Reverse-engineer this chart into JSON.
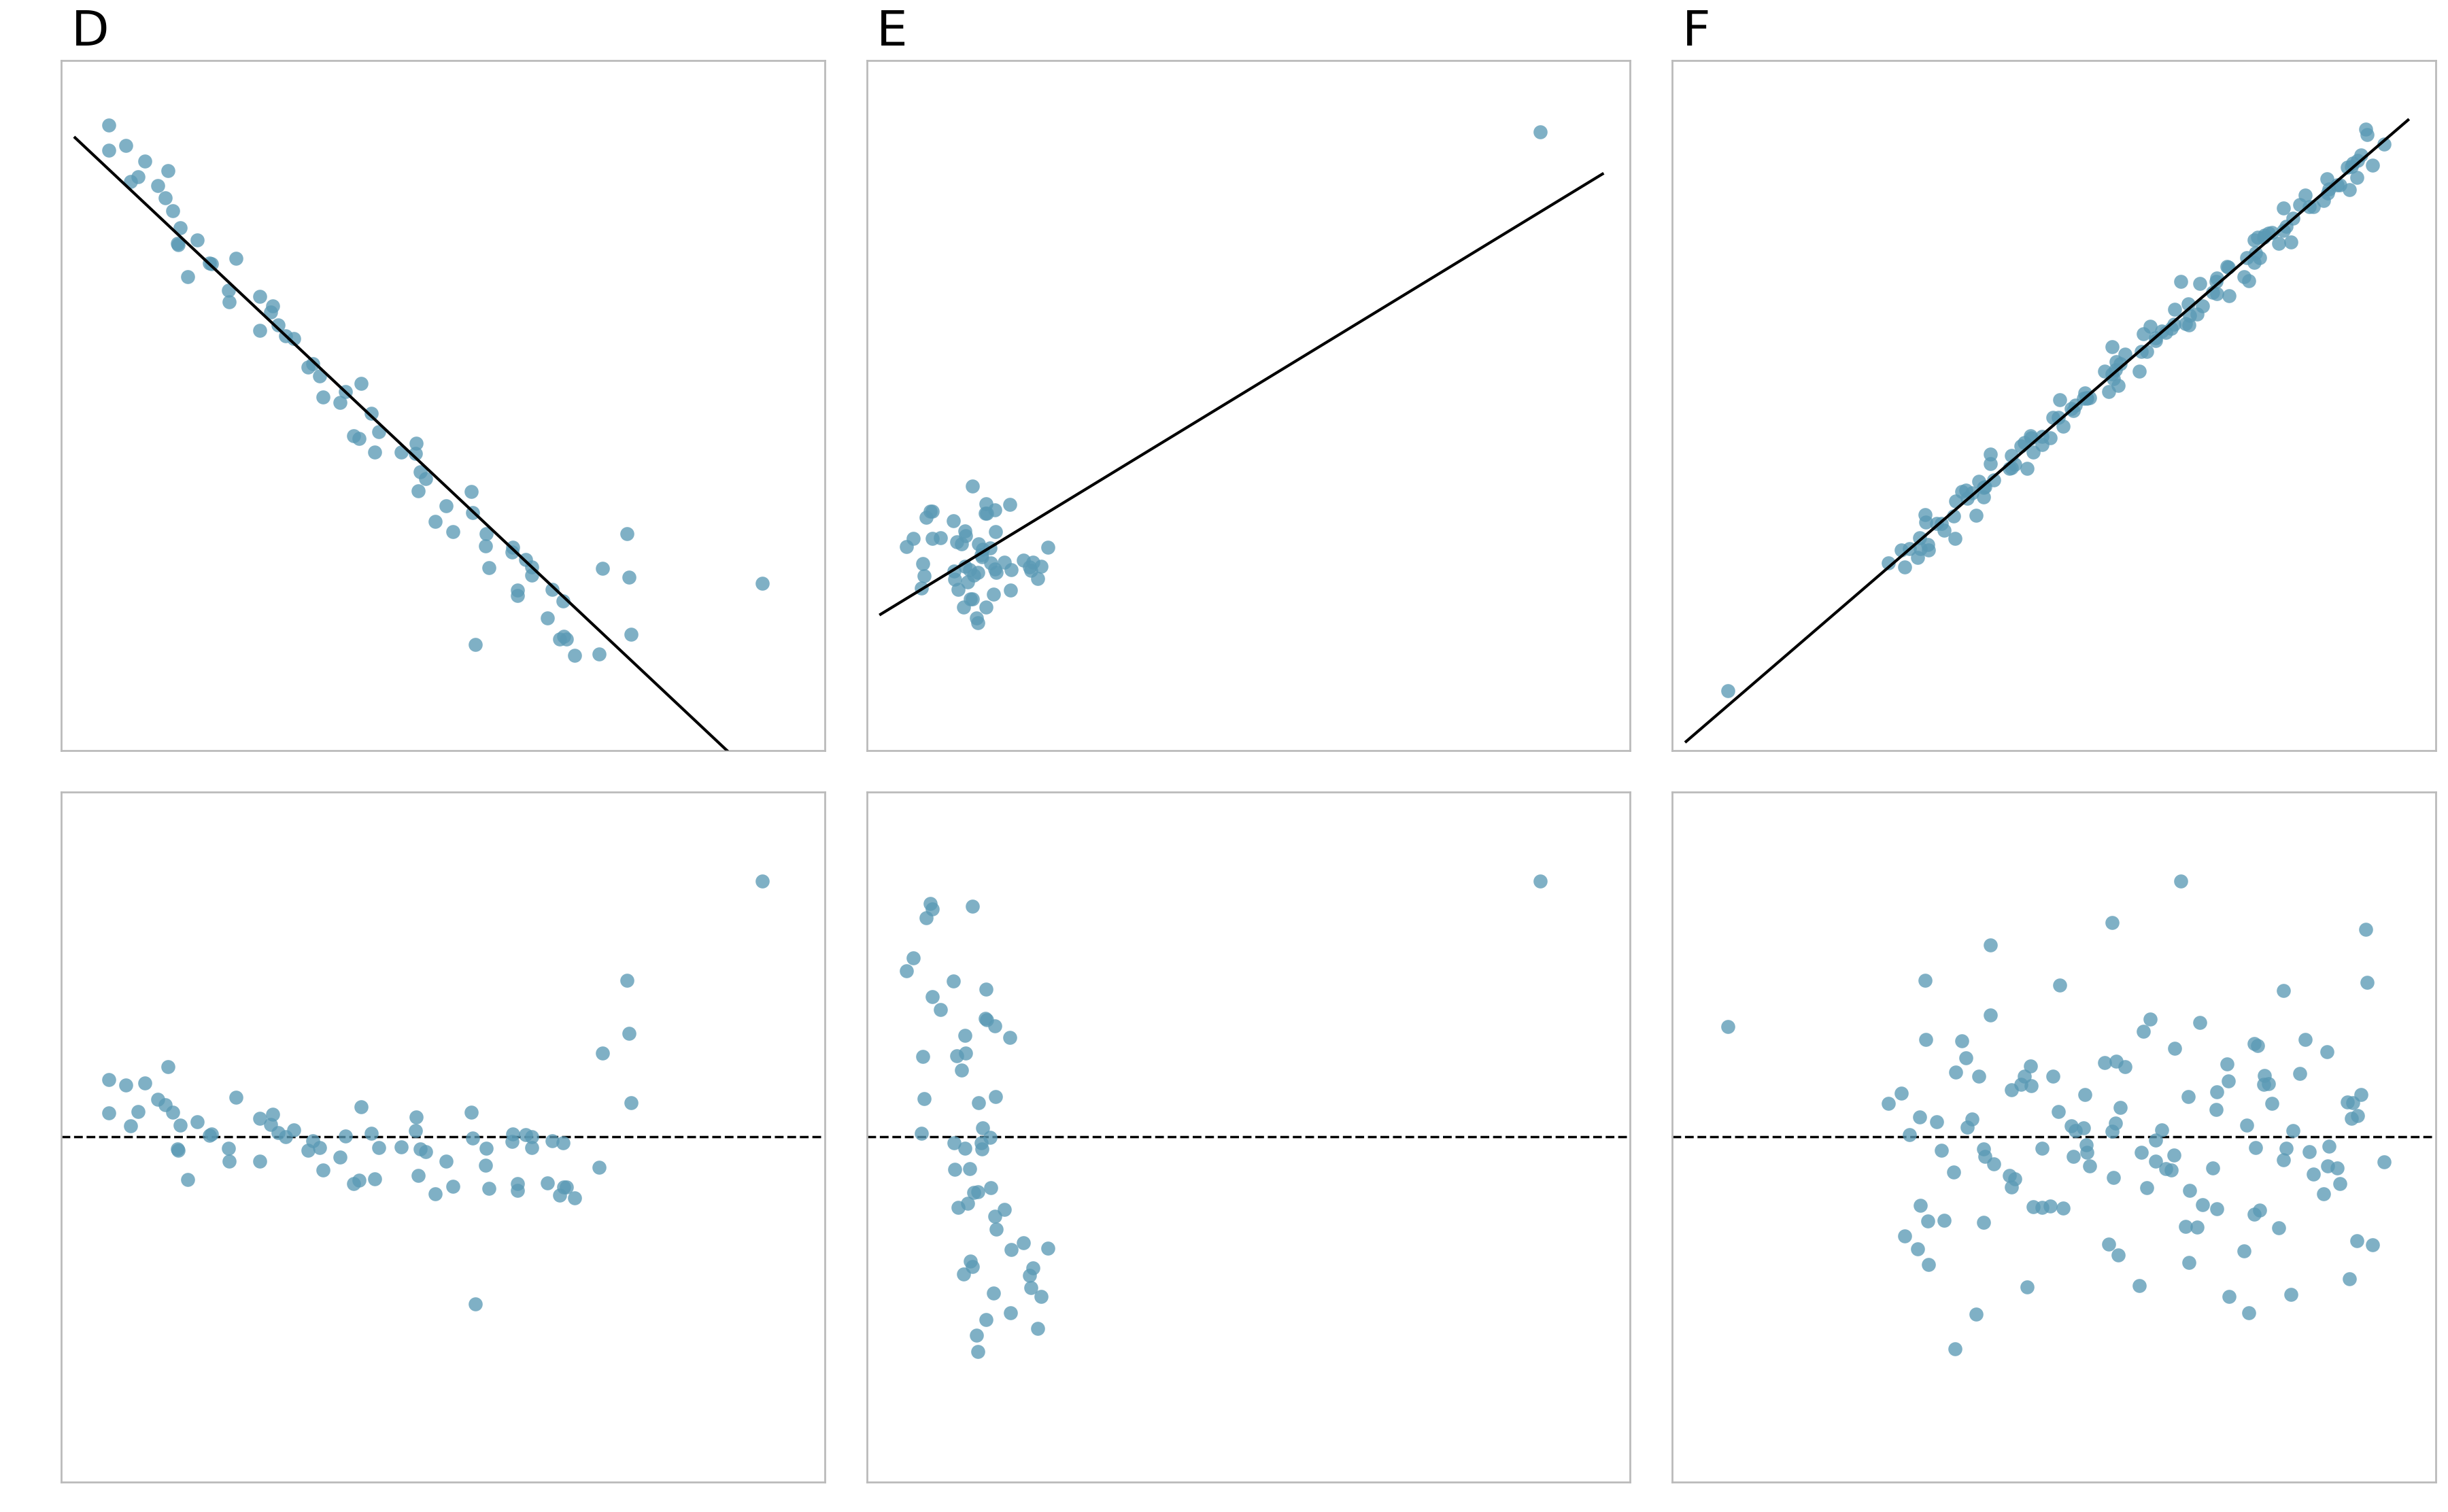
{
  "dot_color": "#5b9ab5",
  "dot_alpha": 0.78,
  "dot_size": 220,
  "line_color": "black",
  "line_width": 3.0,
  "dashed_color": "black",
  "dashed_lw": 2.5,
  "panel_labels": [
    "D",
    "E",
    "F"
  ],
  "label_fontsize": 52,
  "bg_color": "white",
  "box_color": "#bbbbbb",
  "resid_dot_size": 220
}
